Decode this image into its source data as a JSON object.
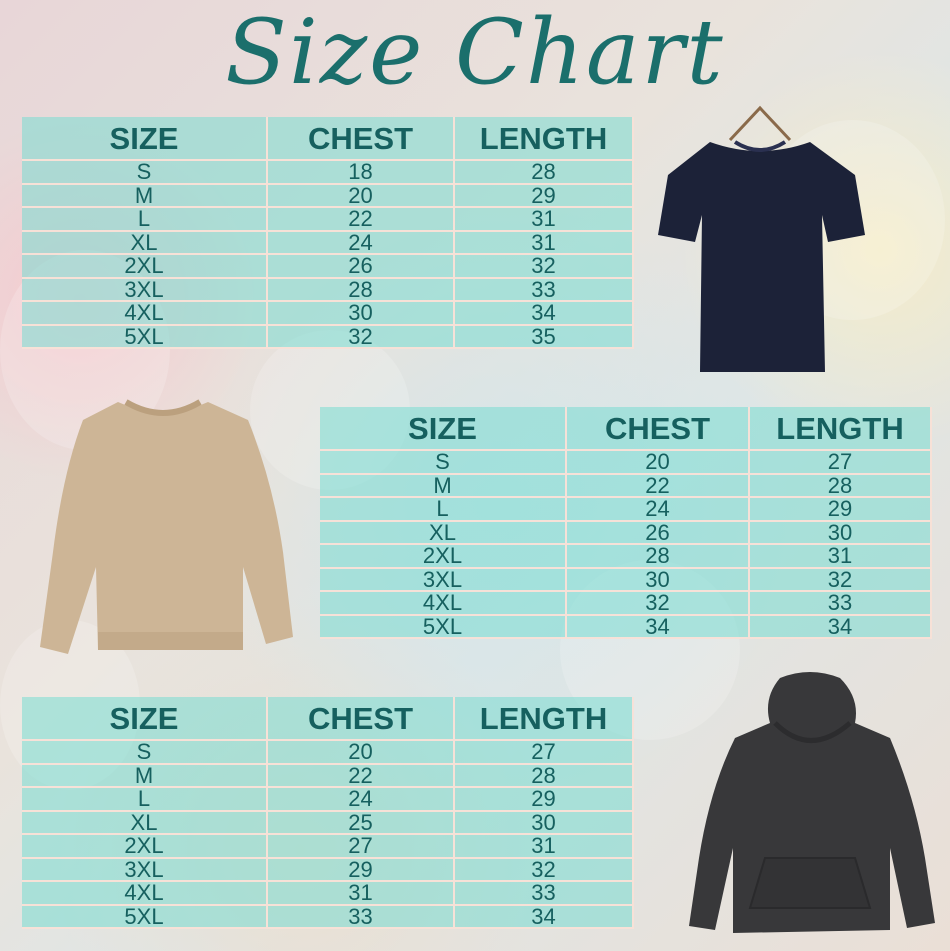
{
  "title": "Size Chart",
  "colors": {
    "title": "#1b6f6c",
    "table_text": "#16605f",
    "table_fill": "#78dcd2",
    "tshirt": "#1c2238",
    "sweatshirt": "#cdb596",
    "hoodie": "#38383a"
  },
  "garments": [
    "t-shirt",
    "sweatshirt",
    "hoodie"
  ],
  "tables": [
    {
      "headers": [
        "SIZE",
        "CHEST",
        "LENGTH"
      ],
      "rows": [
        [
          "S",
          "18",
          "28"
        ],
        [
          "M",
          "20",
          "29"
        ],
        [
          "L",
          "22",
          "31"
        ],
        [
          "XL",
          "24",
          "31"
        ],
        [
          "2XL",
          "26",
          "32"
        ],
        [
          "3XL",
          "28",
          "33"
        ],
        [
          "4XL",
          "30",
          "34"
        ],
        [
          "5XL",
          "32",
          "35"
        ]
      ]
    },
    {
      "headers": [
        "SIZE",
        "CHEST",
        "LENGTH"
      ],
      "rows": [
        [
          "S",
          "20",
          "27"
        ],
        [
          "M",
          "22",
          "28"
        ],
        [
          "L",
          "24",
          "29"
        ],
        [
          "XL",
          "26",
          "30"
        ],
        [
          "2XL",
          "28",
          "31"
        ],
        [
          "3XL",
          "30",
          "32"
        ],
        [
          "4XL",
          "32",
          "33"
        ],
        [
          "5XL",
          "34",
          "34"
        ]
      ]
    },
    {
      "headers": [
        "SIZE",
        "CHEST",
        "LENGTH"
      ],
      "rows": [
        [
          "S",
          "20",
          "27"
        ],
        [
          "M",
          "22",
          "28"
        ],
        [
          "L",
          "24",
          "29"
        ],
        [
          "XL",
          "25",
          "30"
        ],
        [
          "2XL",
          "27",
          "31"
        ],
        [
          "3XL",
          "29",
          "32"
        ],
        [
          "4XL",
          "31",
          "33"
        ],
        [
          "5XL",
          "33",
          "34"
        ]
      ]
    }
  ]
}
